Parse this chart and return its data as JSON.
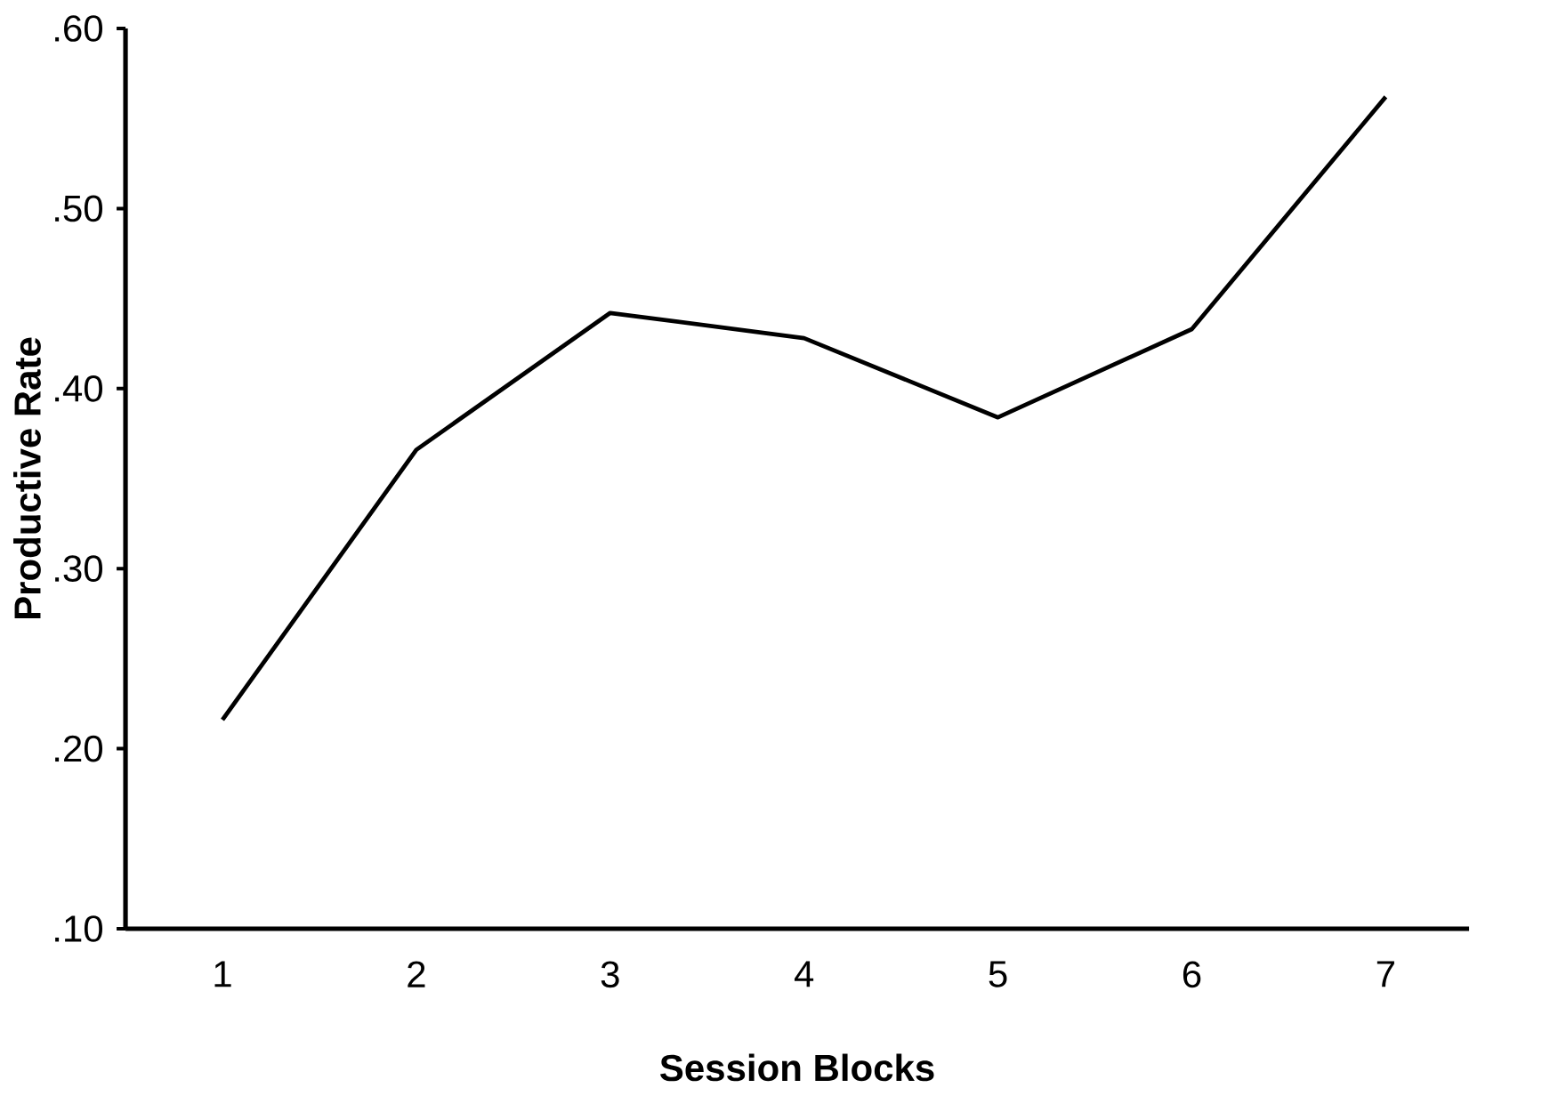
{
  "chart_data": {
    "type": "line",
    "xlabel": "Session Blocks",
    "ylabel": "Productive Rate",
    "categories": [
      "1",
      "2",
      "3",
      "4",
      "5",
      "6",
      "7"
    ],
    "series": [
      {
        "color": "#000000",
        "values": [
          0.216,
          0.366,
          0.442,
          0.428,
          0.384,
          0.433,
          0.562
        ]
      }
    ],
    "ylim": [
      0.1,
      0.6
    ],
    "yticks": [
      {
        "value": 0.1,
        "label": ".10"
      },
      {
        "value": 0.2,
        "label": ".20"
      },
      {
        "value": 0.3,
        "label": ".30"
      },
      {
        "value": 0.4,
        "label": ".40"
      },
      {
        "value": 0.5,
        "label": ".50"
      },
      {
        "value": 0.6,
        "label": ".60"
      }
    ],
    "grid": false,
    "marker": "none",
    "line_style": "solid"
  }
}
